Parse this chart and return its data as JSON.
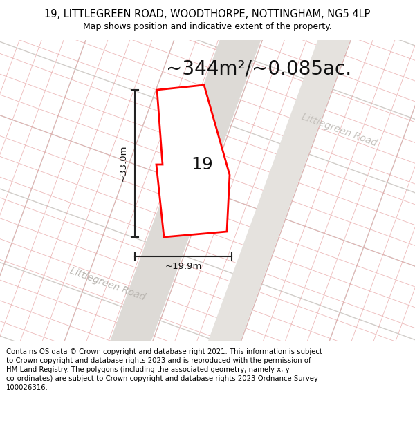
{
  "title_line1": "19, LITTLEGREEN ROAD, WOODTHORPE, NOTTINGHAM, NG5 4LP",
  "title_line2": "Map shows position and indicative extent of the property.",
  "area_text": "~344m²/~0.085ac.",
  "dim_height": "~33.0m",
  "dim_width": "~19.9m",
  "property_label": "19",
  "road_label_left": "Littlegreen Road",
  "road_label_right": "Littlegreen Road",
  "disclaimer": "Contains OS data © Crown copyright and database right 2021. This information is subject\nto Crown copyright and database rights 2023 and is reproduced with the permission of\nHM Land Registry. The polygons (including the associated geometry, namely x, y\nco-ordinates) are subject to Crown copyright and database rights 2023 Ordnance Survey\n100026316.",
  "map_bg": "#f0eeeb",
  "road_color": "#e0ddd9",
  "grid_gray_color": "#d0ccc8",
  "grid_red_color": "#e8a8a8",
  "polygon_color": "#ff0000",
  "polygon_fill": "#ffffff",
  "figsize": [
    6.0,
    6.25
  ],
  "dpi": 100,
  "title_fontsize": 10.5,
  "subtitle_fontsize": 9,
  "area_fontsize": 20,
  "label_fontsize": 18
}
